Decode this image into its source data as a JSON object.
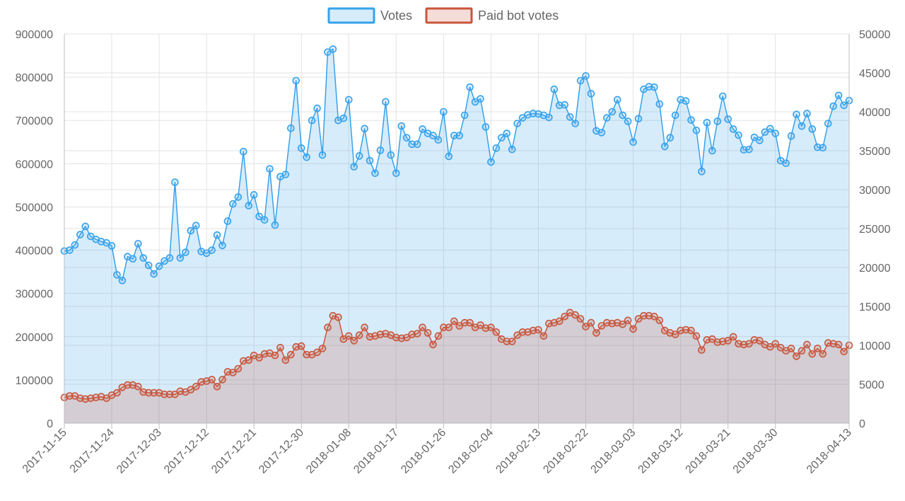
{
  "chart_data": {
    "type": "line",
    "title": "",
    "xlabel": "",
    "ylabel": "",
    "grid": true,
    "legend_placement": "top-center",
    "legend": [
      "Votes",
      "Paid bot votes"
    ],
    "x_tick_labels": [
      "2017-11-15",
      "2017-11-24",
      "2017-12-03",
      "2017-12-12",
      "2017-12-21",
      "2017-12-30",
      "2018-01-08",
      "2018-01-17",
      "2018-01-26",
      "2018-02-04",
      "2018-02-13",
      "2018-02-22",
      "2018-03-03",
      "2018-03-12",
      "2018-03-21",
      "2018-03-30",
      "2018-04-13"
    ],
    "x_range": [
      "2017-11-15",
      "2018-04-13"
    ],
    "y_left": {
      "ylim": [
        0,
        900000
      ],
      "ticks": [
        "0",
        "100000",
        "200000",
        "300000",
        "400000",
        "500000",
        "600000",
        "700000",
        "800000",
        "900000"
      ]
    },
    "y_right": {
      "ylim": [
        0,
        50000
      ],
      "ticks": [
        "0",
        "5000",
        "10000",
        "15000",
        "20000",
        "25000",
        "30000",
        "35000",
        "40000",
        "45000",
        "50000"
      ]
    },
    "colors": {
      "votes_line": "#36a2eb",
      "votes_fill": "rgba(54,162,235,0.2)",
      "bot_line": "#c9553a",
      "bot_fill": "rgba(201,85,58,0.2)",
      "grid": "#e3e3e3",
      "axis": "#bdbdbd",
      "text": "#666666"
    },
    "series": [
      {
        "name": "Votes",
        "axis": "left",
        "values": [
          398000,
          400000,
          412000,
          436000,
          455000,
          432000,
          425000,
          420000,
          417000,
          410000,
          343000,
          330000,
          385000,
          380000,
          415000,
          382000,
          365000,
          345000,
          363000,
          375000,
          382000,
          557000,
          382000,
          395000,
          445000,
          457000,
          397000,
          393000,
          400000,
          435000,
          411000,
          467000,
          507000,
          523000,
          628000,
          503000,
          528000,
          478000,
          470000,
          588000,
          458000,
          570000,
          575000,
          682000,
          792000,
          636000,
          615000,
          700000,
          728000,
          620000,
          858000,
          865000,
          700000,
          705000,
          748000,
          593000,
          618000,
          681000,
          607000,
          578000,
          631000,
          743000,
          620000,
          578000,
          687000,
          660000,
          645000,
          645000,
          680000,
          670000,
          665000,
          655000,
          720000,
          617000,
          665000,
          665000,
          712000,
          777000,
          743000,
          750000,
          685000,
          604000,
          636000,
          660000,
          670000,
          633000,
          693000,
          706000,
          713000,
          716000,
          715000,
          712000,
          707000,
          772000,
          735000,
          736000,
          708000,
          693000,
          792000,
          803000,
          762000,
          676000,
          672000,
          706000,
          720000,
          748000,
          712000,
          698000,
          650000,
          704000,
          772000,
          778000,
          777000,
          738000,
          640000,
          660000,
          712000,
          748000,
          745000,
          701000,
          677000,
          582000,
          695000,
          630000,
          698000,
          756000,
          703000,
          680000,
          666000,
          632000,
          633000,
          661000,
          654000,
          673000,
          681000,
          670000,
          607000,
          601000,
          664000,
          714000,
          687000,
          716000,
          680000,
          638000,
          637000,
          693000,
          733000,
          758000,
          735000,
          746000
        ]
      },
      {
        "name": "Paid bot votes",
        "axis": "right",
        "values": [
          3300,
          3500,
          3500,
          3200,
          3100,
          3200,
          3300,
          3400,
          3200,
          3600,
          3900,
          4600,
          4900,
          4900,
          4700,
          4000,
          3900,
          3900,
          3900,
          3700,
          3700,
          3700,
          4100,
          4000,
          4300,
          4700,
          5300,
          5400,
          5600,
          4700,
          5600,
          6600,
          6500,
          7000,
          8000,
          8100,
          8700,
          8400,
          8900,
          9000,
          8700,
          9700,
          8100,
          8800,
          9800,
          9900,
          8800,
          8800,
          9100,
          9600,
          12300,
          13800,
          13600,
          10800,
          11200,
          10600,
          11300,
          12300,
          11100,
          11200,
          11400,
          11500,
          11300,
          11000,
          10900,
          11000,
          11400,
          11500,
          12300,
          11600,
          10100,
          11200,
          12300,
          12300,
          13100,
          12500,
          12900,
          12900,
          12300,
          12600,
          12200,
          12300,
          11700,
          10800,
          10500,
          10500,
          11300,
          11700,
          11700,
          11900,
          12000,
          11200,
          12800,
          12900,
          13100,
          13700,
          14200,
          13900,
          13400,
          12400,
          12900,
          11600,
          12500,
          12900,
          12800,
          12900,
          12700,
          13200,
          12100,
          13400,
          13800,
          13800,
          13700,
          13200,
          11900,
          11600,
          11400,
          11900,
          12000,
          11900,
          11200,
          9400,
          10700,
          10800,
          10400,
          10500,
          10600,
          11100,
          10200,
          10100,
          10200,
          10700,
          10600,
          10100,
          9800,
          10200,
          9700,
          9300,
          9600,
          8600,
          9300,
          10100,
          8900,
          9600,
          8900,
          10300,
          10200,
          10100,
          9200,
          10000
        ]
      }
    ]
  }
}
